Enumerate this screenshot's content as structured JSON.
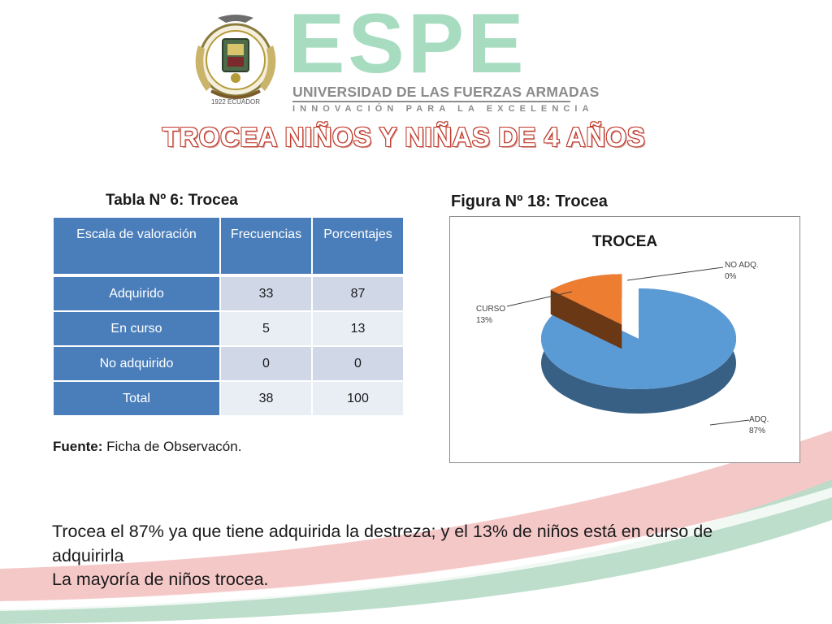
{
  "header": {
    "brand": "ESPE",
    "university": "UNIVERSIDAD DE LAS FUERZAS ARMADAS",
    "slogan": "INNOVACIÓN PARA LA EXCELENCIA",
    "seal_text": "1922 ECUADOR"
  },
  "title": "TROCEA NIÑOS Y NIÑAS DE 4 AÑOS",
  "table": {
    "caption": "Tabla Nº 6: Trocea",
    "columns": [
      "Escala de valoración",
      "Frecuencias",
      "Porcentajes"
    ],
    "rows": [
      {
        "label": "Adquirido",
        "freq": "33",
        "pct": "87"
      },
      {
        "label": "En curso",
        "freq": "5",
        "pct": "13"
      },
      {
        "label": "No adquirido",
        "freq": "0",
        "pct": "0"
      },
      {
        "label": "Total",
        "freq": "38",
        "pct": "100"
      }
    ],
    "source_label": "Fuente:",
    "source_text": "Ficha de Observacón."
  },
  "figure": {
    "caption": "Figura Nº 18: Trocea"
  },
  "chart_data": {
    "type": "pie",
    "title": "TROCEA",
    "slices": [
      {
        "label": "ADQ.",
        "value": 87,
        "value_label": "87%",
        "color": "#5b9bd5"
      },
      {
        "label": "CURSO",
        "value": 13,
        "value_label": "13%",
        "color": "#ed7d31"
      },
      {
        "label": "NO ADQ.",
        "value": 0,
        "value_label": "0%",
        "color": "#a5a5a5"
      }
    ],
    "legend": "none",
    "style": "3d-exploded"
  },
  "summary": {
    "line1": "Trocea el 87% ya que tiene adquirida la destreza; y el 13% de niños está en curso de adquirirla",
    "line2": "La mayoría de niños trocea."
  },
  "colors": {
    "brand_green": "#a8dcc0",
    "title_red": "#c0392b",
    "table_header": "#4a7ebb",
    "swoosh_pink": "#f4c2c2",
    "swoosh_green": "#b9dcc8"
  }
}
